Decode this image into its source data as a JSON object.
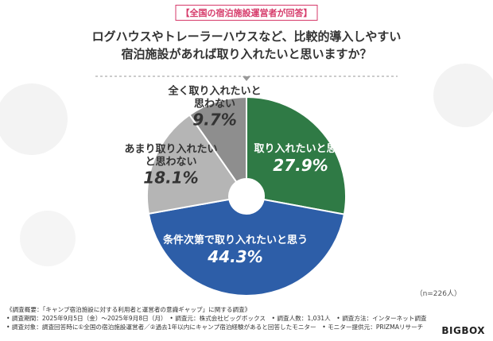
{
  "chart_data": {
    "type": "pie",
    "tag": "【全国の宿泊施設運営者が回答】",
    "title": [
      "ログハウスやトレーラーハウスなど、比較的導入しやすい",
      "宿泊施設があれば取り入れたいと思いますか？"
    ],
    "categories": [
      "取り入れたいと思う",
      "条件次第で取り入れたいと思う",
      "あまり取り入れたいと思わない",
      "全く取り入れたいと思わない"
    ],
    "values": [
      27.9,
      44.3,
      18.1,
      9.7
    ],
    "value_labels": [
      "27.9%",
      "44.3%",
      "18.1%",
      "9.7%"
    ],
    "colors": [
      "#2f7a45",
      "#2d5ea8",
      "#b5b5b5",
      "#8e8e8e"
    ],
    "note": "（n=226人）",
    "footer": [
      "《調査概要：「キャンプ宿泊施設に対する利用者と運営者の意識ギャップ」に関する調査》",
      "• 調査期間：2025年9月5日（金）～2025年9月8日（月）　• 調査元：株式会社ビッグボックス　• 調査人数：1,031人　• 調査方法：インターネット調査",
      "• 調査対象：調査回答時に①全国の宿泊施設運営者／②過去1年以内にキャンプ宿泊経験があると回答したモニター　• モニター提供元：PRIZMAリサーチ"
    ],
    "logo": "BIGBOX"
  }
}
